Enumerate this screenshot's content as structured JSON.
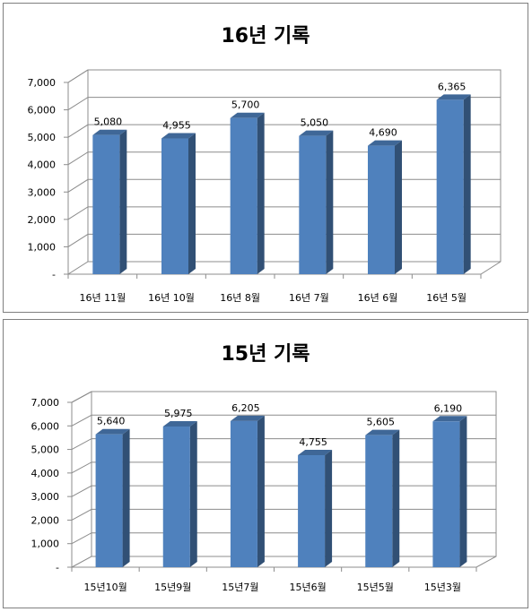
{
  "chart_data": [
    {
      "type": "bar",
      "title": "16년 기록",
      "categories": [
        "16년 11월",
        "16년 10월",
        "16년 8월",
        "16년 7월",
        "16년 6월",
        "16년 5월"
      ],
      "values": [
        5080,
        4955,
        5700,
        5050,
        4690,
        6365
      ],
      "data_labels": [
        "5,080",
        "4,955",
        "5,700",
        "5,050",
        "4,690",
        "6,365"
      ],
      "y_ticks": [
        "-",
        "1,000",
        "2,000",
        "3,000",
        "4,000",
        "5,000",
        "6,000",
        "7,000"
      ],
      "ylim": [
        0,
        7000
      ],
      "grid": true,
      "style": "3d-column",
      "bar_color": "#4f81bd"
    },
    {
      "type": "bar",
      "title": "15년 기록",
      "categories": [
        "15년10월",
        "15년9월",
        "15년7월",
        "15년6월",
        "15년5월",
        "15년3월"
      ],
      "values": [
        5640,
        5975,
        6205,
        4755,
        5605,
        6190
      ],
      "data_labels": [
        "5,640",
        "5,975",
        "6,205",
        "4,755",
        "5,605",
        "6,190"
      ],
      "y_ticks": [
        "-",
        "1,000",
        "2,000",
        "3,000",
        "4,000",
        "5,000",
        "6,000",
        "7,000"
      ],
      "ylim": [
        0,
        7000
      ],
      "grid": true,
      "style": "3d-column",
      "bar_color": "#4f81bd"
    }
  ]
}
